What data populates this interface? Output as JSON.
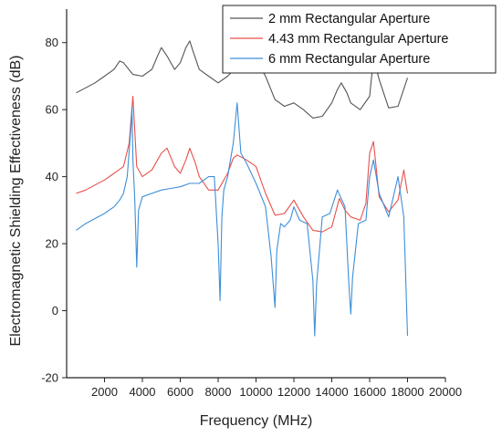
{
  "chart_data": {
    "type": "line",
    "title": "",
    "xlabel": "Frequency (MHz)",
    "ylabel": "Electromagnetic Shielding Effectiveness (dB)",
    "xlim": [
      0,
      20000
    ],
    "ylim": [
      -20,
      90
    ],
    "x_ticks": [
      2000,
      4000,
      6000,
      8000,
      10000,
      12000,
      14000,
      16000,
      18000,
      20000
    ],
    "y_ticks": [
      -20,
      0,
      20,
      40,
      60,
      80
    ],
    "grid": false,
    "legend_position": "top-right",
    "series": [
      {
        "name": "2 mm Rectangular Aperture",
        "color": "#555555",
        "x": [
          500,
          1000,
          1500,
          2000,
          2500,
          2800,
          3000,
          3500,
          4000,
          4500,
          4800,
          5000,
          5300,
          5700,
          6000,
          6300,
          6500,
          6700,
          7000,
          7500,
          8000,
          8500,
          9000,
          9500,
          9800,
          10000,
          10500,
          11000,
          11500,
          12000,
          12500,
          13000,
          13500,
          14000,
          14300,
          14500,
          14800,
          15000,
          15500,
          16000,
          16200,
          16500,
          17000,
          17500,
          18000
        ],
        "y": [
          65,
          66.5,
          68,
          70,
          72,
          74.5,
          74,
          70.5,
          70,
          72,
          76,
          78.5,
          76,
          72,
          74,
          78.5,
          80.5,
          77,
          72,
          70,
          68,
          70,
          73,
          74.5,
          75.5,
          75,
          70,
          63,
          61,
          62,
          60,
          57.5,
          58,
          62,
          66,
          68,
          65,
          62,
          60,
          64,
          75.5,
          69,
          60.5,
          61,
          69.5
        ]
      },
      {
        "name": "4.43 mm Rectangular Aperture",
        "color": "#e8504a",
        "x": [
          500,
          1000,
          1500,
          2000,
          2500,
          3000,
          3300,
          3500,
          3700,
          4000,
          4500,
          5000,
          5300,
          5700,
          6000,
          6300,
          6500,
          6800,
          7000,
          7500,
          8000,
          8500,
          8800,
          9000,
          9500,
          10000,
          10500,
          11000,
          11500,
          12000,
          12500,
          13000,
          13500,
          14000,
          14400,
          14700,
          15000,
          15500,
          15800,
          16000,
          16200,
          16500,
          17000,
          17500,
          17800,
          18000
        ],
        "y": [
          35,
          36,
          37.5,
          39,
          41,
          43,
          50,
          64,
          43,
          40,
          42,
          47,
          48.5,
          43,
          41,
          45,
          48.5,
          44,
          40,
          36,
          36,
          41,
          45.5,
          46.5,
          45,
          43,
          35,
          28.5,
          29,
          33,
          28,
          24,
          23.5,
          25,
          33.5,
          30,
          28,
          27,
          32,
          47,
          50.5,
          34,
          29.5,
          33,
          42,
          35
        ]
      },
      {
        "name": "6 mm Rectangular Aperture",
        "color": "#3d8fd8",
        "x": [
          500,
          1000,
          1500,
          2000,
          2500,
          2800,
          3000,
          3200,
          3400,
          3450,
          3500,
          3600,
          3700,
          3800,
          4000,
          4500,
          5000,
          5500,
          6000,
          6500,
          7000,
          7500,
          7800,
          8000,
          8100,
          8200,
          8300,
          8500,
          8800,
          9000,
          9200,
          9500,
          10000,
          10500,
          10800,
          11000,
          11100,
          11300,
          11500,
          11800,
          12000,
          12300,
          12700,
          13000,
          13100,
          13200,
          13500,
          13900,
          14300,
          14700,
          14900,
          15000,
          15100,
          15400,
          15800,
          16000,
          16200,
          16500,
          17000,
          17500,
          17800,
          18000
        ],
        "y": [
          24,
          26,
          27.5,
          29,
          31,
          33,
          35,
          40,
          55,
          61,
          45,
          33,
          13,
          30,
          34,
          35,
          36,
          36.5,
          37,
          38,
          38,
          40,
          40,
          20,
          3,
          28,
          36,
          40,
          50,
          62,
          47,
          44,
          38,
          31,
          16,
          1,
          18,
          26,
          25,
          27,
          31,
          27,
          26,
          9,
          -7.5,
          8,
          28,
          29,
          36,
          31,
          8,
          -1,
          10,
          26,
          27,
          40,
          45,
          35,
          28,
          40,
          28,
          -7.5
        ]
      }
    ]
  }
}
